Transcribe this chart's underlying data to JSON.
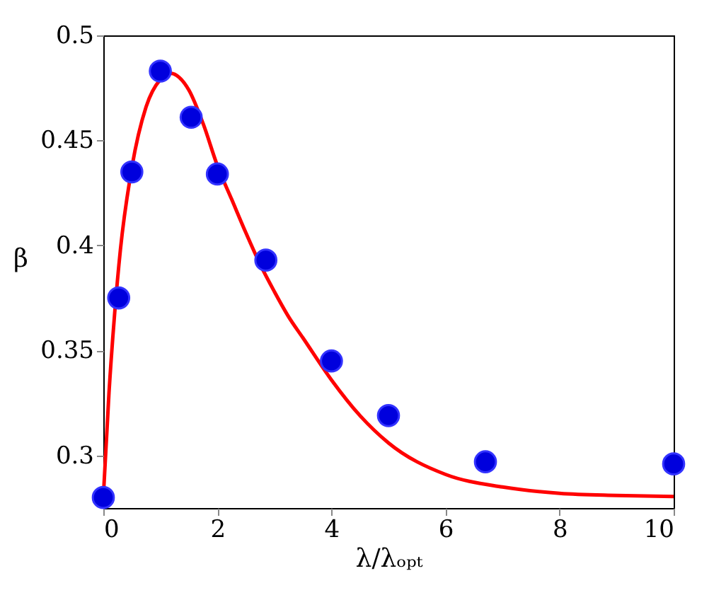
{
  "chart_data": {
    "type": "scatter",
    "xlabel": "λ/λₒₚₜ",
    "ylabel": "β",
    "xlim": [
      0,
      10
    ],
    "ylim": [
      0.275,
      0.5
    ],
    "xticks": [
      0,
      2,
      4,
      6,
      8,
      10
    ],
    "yticks": [
      0.3,
      0.35,
      0.4,
      0.45,
      0.5
    ],
    "grid": false,
    "series": [
      {
        "color": "#0000dd",
        "marker": "circle",
        "x": [
          0,
          0.27,
          0.5,
          1,
          1.54,
          2,
          2.85,
          4,
          5,
          6.7,
          10
        ],
        "values": [
          0.28,
          0.375,
          0.435,
          0.483,
          0.461,
          0.434,
          0.393,
          0.345,
          0.319,
          0.297,
          0.296
        ]
      },
      {
        "type": "line",
        "color": "#ff0000",
        "line_style": "solid",
        "x": [
          0,
          0.1,
          0.2,
          0.3,
          0.5,
          0.75,
          1,
          1.17,
          1.5,
          1.75,
          2,
          2.25,
          2.5,
          2.75,
          3,
          3.25,
          3.5,
          4,
          4.5,
          5,
          6,
          7,
          8,
          9,
          10
        ],
        "values": [
          0.28,
          0.33,
          0.368,
          0.398,
          0.437,
          0.466,
          0.479,
          0.482,
          0.474,
          0.458,
          0.438,
          0.422,
          0.406,
          0.391,
          0.378,
          0.366,
          0.356,
          0.336,
          0.319,
          0.306,
          0.291,
          0.285,
          0.282,
          0.281,
          0.2805
        ]
      }
    ]
  }
}
